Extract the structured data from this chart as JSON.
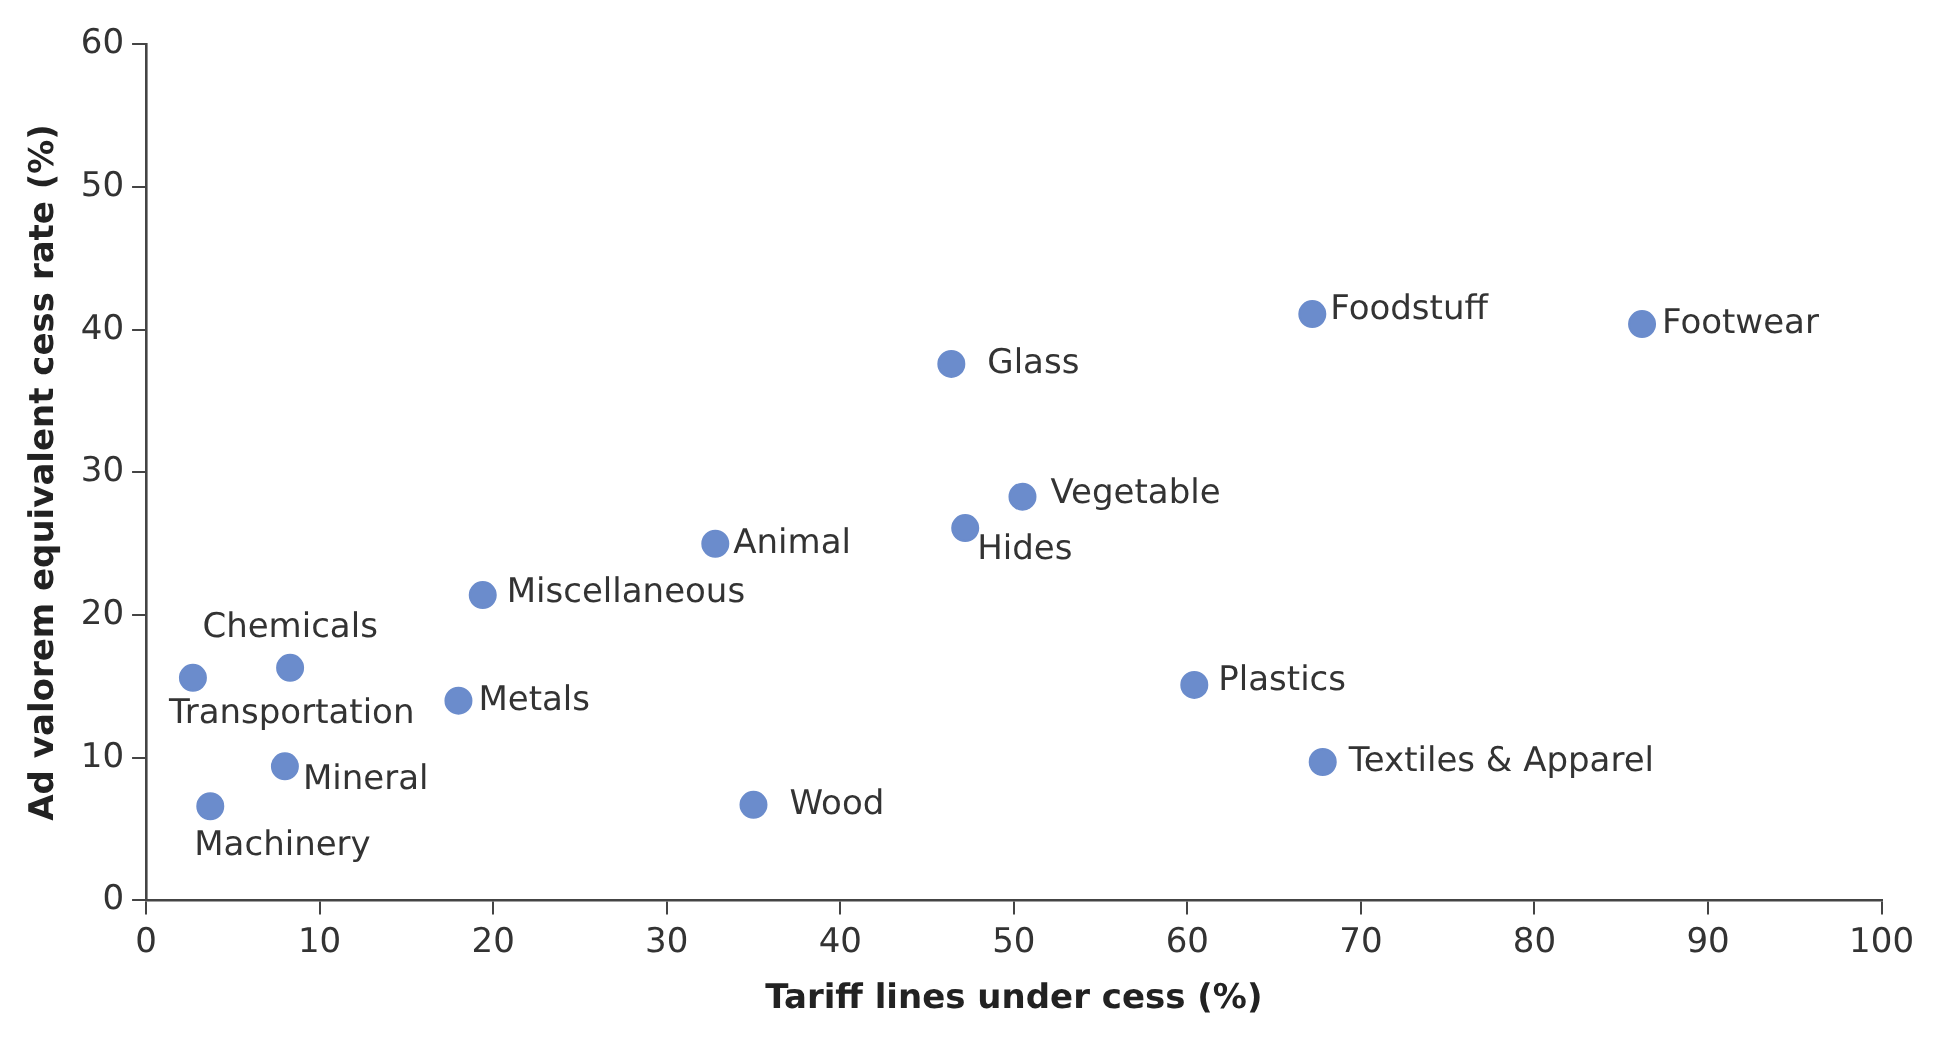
{
  "chart_data": {
    "type": "scatter",
    "xlabel": "Tariff lines under cess (%)",
    "ylabel": "Ad valorem equivalent cess rate (%)",
    "series": [
      {
        "color": "#6b8ccc",
        "x": [
          2.7,
          8.3,
          18.0,
          19.4,
          8.0,
          3.7,
          46.4,
          50.5,
          47.2,
          32.8,
          35.0,
          60.4,
          67.2,
          86.2,
          67.8
        ],
        "values": [
          15.6,
          16.3,
          14.0,
          21.4,
          9.4,
          6.6,
          37.6,
          28.3,
          26.1,
          25.0,
          6.7,
          15.1,
          41.1,
          40.4,
          9.7
        ]
      }
    ],
    "annotations": [
      {
        "text": "Transportation",
        "x": 2.7,
        "y": 15.6
      },
      {
        "text": "Chemicals",
        "x": 8.3,
        "y": 16.3
      },
      {
        "text": "Metals",
        "x": 18.0,
        "y": 14.0
      },
      {
        "text": "Miscellaneous",
        "x": 19.4,
        "y": 21.4
      },
      {
        "text": "Mineral",
        "x": 8.0,
        "y": 9.4
      },
      {
        "text": "Machinery",
        "x": 3.7,
        "y": 6.6
      },
      {
        "text": "Glass",
        "x": 46.4,
        "y": 37.6
      },
      {
        "text": "Vegetable",
        "x": 50.5,
        "y": 28.3
      },
      {
        "text": "Hides",
        "x": 47.2,
        "y": 26.1
      },
      {
        "text": "Animal",
        "x": 32.8,
        "y": 25.0
      },
      {
        "text": "Wood",
        "x": 35.0,
        "y": 6.7
      },
      {
        "text": "Plastics",
        "x": 60.4,
        "y": 15.1
      },
      {
        "text": "Foodstuff",
        "x": 67.2,
        "y": 41.1
      },
      {
        "text": "Footwear",
        "x": 86.2,
        "y": 40.4
      },
      {
        "text": "Textiles & Apparel",
        "x": 67.8,
        "y": 9.7
      }
    ],
    "xlim": [
      0,
      100
    ],
    "xticks": [
      0,
      10,
      20,
      30,
      40,
      50,
      60,
      70,
      80,
      90,
      100
    ],
    "ylim": [
      0,
      60
    ],
    "yticks": [
      0,
      10,
      20,
      30,
      40,
      50,
      60
    ],
    "grid": false,
    "legend": false,
    "marker": "circle"
  }
}
